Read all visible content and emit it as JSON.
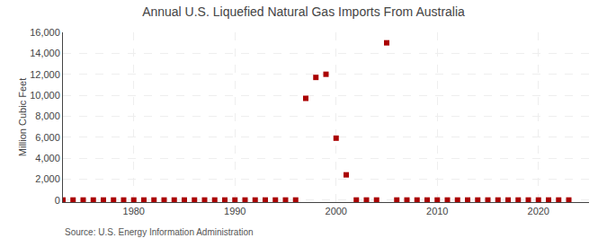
{
  "chart_data": {
    "type": "scatter",
    "title": "Annual U.S. Liquefied Natural Gas Imports From Australia",
    "y_label": "Million Cubic Feet",
    "annotations": [
      "Source: U.S. Energy Information Administration"
    ],
    "x": [
      1973,
      1974,
      1975,
      1976,
      1977,
      1978,
      1979,
      1980,
      1981,
      1982,
      1983,
      1984,
      1985,
      1986,
      1987,
      1988,
      1989,
      1990,
      1991,
      1992,
      1993,
      1994,
      1995,
      1996,
      1997,
      1998,
      1999,
      2000,
      2001,
      2002,
      2003,
      2004,
      2005,
      2006,
      2007,
      2008,
      2009,
      2010,
      2011,
      2012,
      2013,
      2014,
      2015,
      2016,
      2017,
      2018,
      2019,
      2020,
      2021,
      2022,
      2023
    ],
    "values": [
      0,
      0,
      0,
      0,
      0,
      0,
      0,
      0,
      0,
      0,
      0,
      0,
      0,
      0,
      0,
      0,
      0,
      0,
      0,
      0,
      0,
      0,
      0,
      0,
      9700,
      11700,
      12000,
      5900,
      2400,
      0,
      0,
      0,
      15000,
      0,
      0,
      0,
      0,
      0,
      0,
      0,
      0,
      0,
      0,
      0,
      0,
      0,
      0,
      0,
      0,
      0,
      0
    ],
    "color": "#aa0000",
    "marker": "square",
    "xlim": [
      1973,
      2025
    ],
    "ylim": [
      -200,
      16000
    ],
    "xticks": [
      1980,
      1990,
      2000,
      2010,
      2020
    ],
    "yticks": [
      0,
      {
        "value": 2000,
        "label": "2,000"
      },
      {
        "value": 4000,
        "label": "4,000"
      },
      {
        "value": 6000,
        "label": "6,000"
      },
      {
        "value": 8000,
        "label": "8,000"
      },
      {
        "value": 10000,
        "label": "10,000"
      },
      {
        "value": 12000,
        "label": "12,000"
      },
      {
        "value": 14000,
        "label": "14,000"
      },
      {
        "value": 16000,
        "label": "16,000"
      }
    ],
    "grid": true
  }
}
